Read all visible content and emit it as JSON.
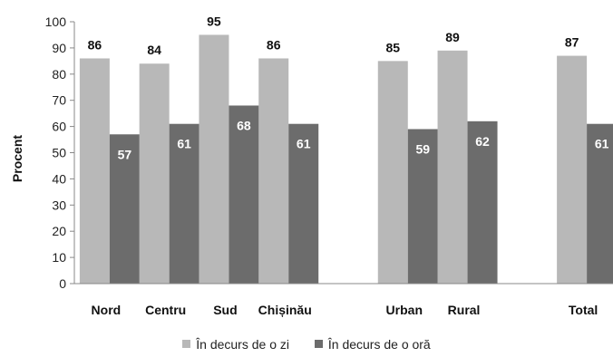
{
  "chart_data": {
    "type": "bar",
    "ylabel": "Procent",
    "ylim": [
      0,
      100
    ],
    "yticks": [
      0,
      10,
      20,
      30,
      40,
      50,
      60,
      70,
      80,
      90,
      100
    ],
    "grid": false,
    "legend_position": "bottom",
    "categories": [
      "Nord",
      "Centru",
      "Sud",
      "Chișinău",
      "",
      "Urban",
      "Rural",
      "",
      "Total"
    ],
    "series": [
      {
        "name": "În decurs de o zi",
        "color": "#b8b8b8",
        "values": [
          86,
          84,
          95,
          86,
          null,
          85,
          89,
          null,
          87
        ]
      },
      {
        "name": "În decurs de o oră",
        "color": "#6c6c6c",
        "values": [
          57,
          61,
          68,
          61,
          null,
          59,
          62,
          null,
          61
        ]
      }
    ]
  }
}
